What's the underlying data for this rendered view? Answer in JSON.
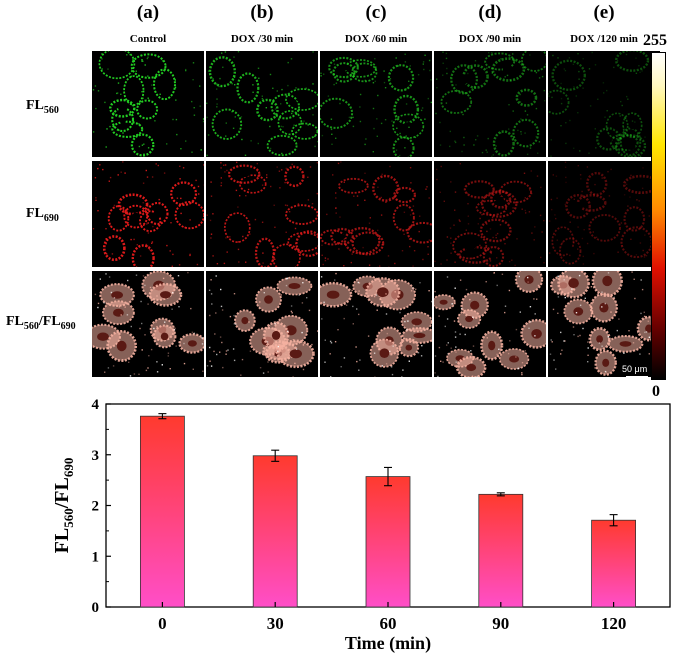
{
  "panels": [
    {
      "letter": "(a)",
      "title": "Control"
    },
    {
      "letter": "(b)",
      "title": "DOX /30 min"
    },
    {
      "letter": "(c)",
      "title": "DOX /60 min"
    },
    {
      "letter": "(d)",
      "title": "DOX /90 min"
    },
    {
      "letter": "(e)",
      "title": "DOX /120 min"
    }
  ],
  "rows": [
    {
      "label_main": "FL",
      "label_sub": "560",
      "label_main2": "",
      "label_sub2": "",
      "color": "#22cc22"
    },
    {
      "label_main": "FL",
      "label_sub": "690",
      "label_main2": "",
      "label_sub2": "",
      "color": "#dd1a1a"
    },
    {
      "label_main": "FL",
      "label_sub": "560",
      "label_main2": "/FL",
      "label_sub2": "690",
      "color": "#f4b0a0"
    }
  ],
  "colorbar": {
    "max": "255",
    "min": "0"
  },
  "scalebar": "50 μm",
  "chart_data": {
    "type": "bar",
    "categories": [
      "0",
      "30",
      "60",
      "90",
      "120"
    ],
    "values": [
      3.76,
      2.98,
      2.57,
      2.22,
      1.71
    ],
    "errors": [
      0.05,
      0.11,
      0.18,
      0.03,
      0.11
    ],
    "xlabel": "Time (min)",
    "ylabel_main": "FL",
    "ylabel_sub": "560",
    "ylabel_main2": "/FL",
    "ylabel_sub2": "690",
    "ylim": [
      0,
      4
    ],
    "yticks": [
      0,
      1,
      2,
      3,
      4
    ],
    "bar_gradient_top": "#ff3a2e",
    "bar_gradient_bottom": "#ff4ec8",
    "grid": false
  }
}
